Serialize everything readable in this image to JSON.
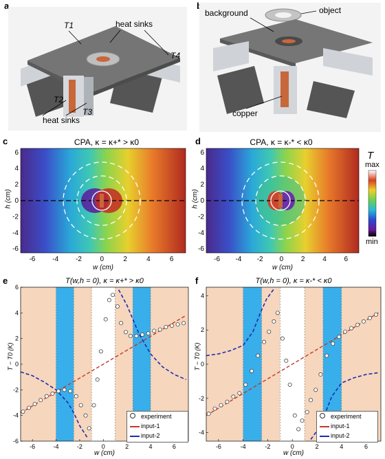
{
  "panels": {
    "a": {
      "label": "a",
      "callouts": [
        "T1",
        "heat sinks",
        "T4",
        "T2",
        "T3",
        "heat sinks"
      ]
    },
    "b": {
      "label": "b",
      "callouts": [
        "background",
        "object",
        "copper"
      ]
    },
    "c": {
      "label": "c",
      "title": "CPA, κ = κ+* > κ0",
      "ylabel": "h (cm)",
      "xlabel": "w (cm)",
      "xticks": [
        "-6",
        "-4",
        "-2",
        "0",
        "2",
        "4",
        "6"
      ],
      "yticks": [
        "6",
        "4",
        "2",
        "0",
        "-2",
        "-4",
        "-6"
      ]
    },
    "d": {
      "label": "d",
      "title": "CPA, κ = κ-* < κ0",
      "ylabel": "h (cm)",
      "xlabel": "w (cm)",
      "xticks": [
        "-6",
        "-4",
        "-2",
        "0",
        "2",
        "4",
        "6"
      ],
      "yticks": [
        "6",
        "4",
        "2",
        "0",
        "-2",
        "-4",
        "-6"
      ],
      "colorbar": {
        "symbol": "T",
        "max": "max",
        "min": "min"
      }
    },
    "e": {
      "label": "e",
      "title": "T(w,h = 0), κ = κ+* > κ0",
      "ylabel": "T − T0 (K)",
      "xlabel": "w (cm)",
      "xticks": [
        "-6",
        "-4",
        "-2",
        "0",
        "2",
        "4",
        "6"
      ],
      "yticks": [
        "6",
        "4",
        "2",
        "0",
        "-2",
        "-4",
        "-6"
      ],
      "legend": [
        "experiment",
        "input-1",
        "input-2"
      ]
    },
    "f": {
      "label": "f",
      "title": "T(w,h = 0), κ = κ-* < κ0",
      "ylabel": "T − T0 (K)",
      "xlabel": "w (cm)",
      "xticks": [
        "-6",
        "-4",
        "-2",
        "0",
        "2",
        "4",
        "6"
      ],
      "yticks": [
        "4",
        "2",
        "0",
        "-2",
        "-4"
      ],
      "legend": [
        "experiment",
        "input-1",
        "input-2"
      ]
    }
  },
  "colors": {
    "copper": "#c8673a",
    "band_orange": "#f6d6bc",
    "band_blue": "#38aeea",
    "input1": "#c0392b",
    "input2": "#1a2db0"
  },
  "chart_data": [
    {
      "type": "line",
      "panel": "e",
      "title": "T(w,h = 0), κ = κ+* > κ0",
      "xlabel": "w (cm)",
      "ylabel": "T − T0 (K)",
      "xlim": [
        -7,
        7.2
      ],
      "ylim": [
        -6,
        6
      ],
      "regions": [
        {
          "from": -7,
          "to": -4,
          "color": "band_orange"
        },
        {
          "from": -4,
          "to": -2.5,
          "color": "band_blue"
        },
        {
          "from": -2.5,
          "to": -1,
          "color": "band_orange"
        },
        {
          "from": 1,
          "to": 2.5,
          "color": "band_orange"
        },
        {
          "from": 2.5,
          "to": 4,
          "color": "band_blue"
        },
        {
          "from": 4,
          "to": 7.2,
          "color": "band_orange"
        }
      ],
      "series": [
        {
          "name": "experiment",
          "x": [
            -6.8,
            -6.3,
            -5.8,
            -5.3,
            -4.8,
            -4.3,
            -3.8,
            -3.3,
            -2.8,
            -2.3,
            -1.9,
            -1.5,
            -1.2,
            -0.8,
            -0.5,
            -0.2,
            0.2,
            0.5,
            0.8,
            1.2,
            1.5,
            1.9,
            2.3,
            2.8,
            3.3,
            3.8,
            4.3,
            4.8,
            5.3,
            5.8,
            6.3,
            6.8
          ],
          "y": [
            -3.7,
            -3.4,
            -3.1,
            -2.8,
            -2.5,
            -2.3,
            -2.1,
            -2.0,
            -2.1,
            -2.5,
            -3.2,
            -4.0,
            -5.0,
            -3.2,
            -1.2,
            1.0,
            3.5,
            5.0,
            5.4,
            4.5,
            3.2,
            2.5,
            2.2,
            2.2,
            2.3,
            2.4,
            2.6,
            2.7,
            2.9,
            3.0,
            3.1,
            3.2
          ]
        },
        {
          "name": "input-1",
          "x": [
            -7,
            7
          ],
          "y": [
            -3.8,
            3.8
          ]
        },
        {
          "name": "input-2",
          "x": [
            -7,
            -6,
            -5,
            -4,
            -3,
            -2.5,
            -2,
            -1.3,
            1.3,
            2,
            2.5,
            3,
            4,
            5,
            6,
            7
          ],
          "y": [
            -0.6,
            -0.9,
            -1.4,
            -2.0,
            -3.0,
            -3.8,
            -4.8,
            -5.8,
            5.8,
            4.6,
            3.5,
            2.4,
            0.8,
            -0.2,
            -0.8,
            -1.2
          ]
        }
      ]
    },
    {
      "type": "line",
      "panel": "f",
      "title": "T(w,h = 0), κ = κ-* < κ0",
      "xlabel": "w (cm)",
      "ylabel": "T − T0 (K)",
      "xlim": [
        -7,
        7.2
      ],
      "ylim": [
        -4.5,
        4.5
      ],
      "regions": [
        {
          "from": -7,
          "to": -4,
          "color": "band_orange"
        },
        {
          "from": -4,
          "to": -2.5,
          "color": "band_blue"
        },
        {
          "from": -2.5,
          "to": -1,
          "color": "band_orange"
        },
        {
          "from": 1,
          "to": 2.5,
          "color": "band_orange"
        },
        {
          "from": 2.5,
          "to": 4,
          "color": "band_blue"
        },
        {
          "from": 4,
          "to": 7.2,
          "color": "band_orange"
        }
      ],
      "series": [
        {
          "name": "experiment",
          "x": [
            -6.8,
            -6.3,
            -5.8,
            -5.3,
            -4.8,
            -4.3,
            -3.8,
            -3.3,
            -2.8,
            -2.3,
            -1.9,
            -1.5,
            -1.2,
            -0.8,
            -0.5,
            -0.2,
            0.2,
            0.5,
            0.8,
            1.2,
            1.5,
            1.9,
            2.3,
            2.8,
            3.3,
            3.8,
            4.3,
            4.8,
            5.3,
            5.8,
            6.3,
            6.8
          ],
          "y": [
            -2.9,
            -2.6,
            -2.4,
            -2.2,
            -1.9,
            -1.7,
            -1.2,
            -0.4,
            0.5,
            1.3,
            1.9,
            2.5,
            3.0,
            1.5,
            0.2,
            -1.2,
            -3.0,
            -3.8,
            -3.3,
            -2.8,
            -2.1,
            -1.5,
            -0.6,
            0.5,
            1.2,
            1.6,
            1.9,
            2.1,
            2.3,
            2.5,
            2.7,
            2.9
          ]
        },
        {
          "name": "input-1",
          "x": [
            -7,
            7
          ],
          "y": [
            -3.0,
            3.0
          ]
        },
        {
          "name": "input-2",
          "x": [
            -7,
            -6,
            -5,
            -4,
            -3.2,
            -2.6,
            -2.1,
            -1.5,
            1.5,
            2.1,
            2.6,
            3.2,
            4,
            5,
            6,
            7
          ],
          "y": [
            0.5,
            0.6,
            0.8,
            1.1,
            1.9,
            3.0,
            3.8,
            4.4,
            -4.4,
            -3.8,
            -3.0,
            -1.9,
            -1.1,
            -0.8,
            -0.6,
            -0.5
          ]
        }
      ]
    }
  ]
}
